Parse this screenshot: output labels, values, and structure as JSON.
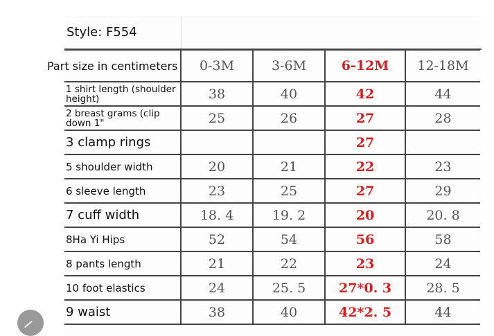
{
  "style_label": "Style: F554",
  "header": {
    "label": "Part size in centimeters",
    "sizes": [
      "0-3M",
      "3-6M",
      "6-12M",
      "12-18M"
    ]
  },
  "highlight_color": "#d42020",
  "rows": [
    {
      "label": "1 shirt length (shoulder height)",
      "values": [
        "38",
        "40",
        "42",
        "44"
      ]
    },
    {
      "label": "2 breast grams (clip down 1\"",
      "values": [
        "25",
        "26",
        "27",
        "28"
      ]
    },
    {
      "label": "3 clamp rings",
      "values": [
        "",
        "",
        "27",
        ""
      ]
    },
    {
      "label": "5 shoulder width",
      "values": [
        "20",
        "21",
        "22",
        "23"
      ]
    },
    {
      "label": "6 sleeve length",
      "values": [
        "23",
        "25",
        "27",
        "29"
      ]
    },
    {
      "label": "7 cuff width",
      "values": [
        "18. 4",
        "19. 2",
        "20",
        "20. 8"
      ]
    },
    {
      "label": "8Ha Yi Hips",
      "values": [
        "52",
        "54",
        "56",
        "58"
      ]
    },
    {
      "label": "8 pants length",
      "values": [
        "21",
        "22",
        "23",
        "24"
      ]
    },
    {
      "label": "10 foot elastics",
      "values": [
        "24",
        "25. 5",
        "27*0. 3",
        "28. 5"
      ]
    },
    {
      "label": "9 waist",
      "values": [
        "38",
        "40",
        "42*2. 5",
        "44"
      ]
    }
  ]
}
